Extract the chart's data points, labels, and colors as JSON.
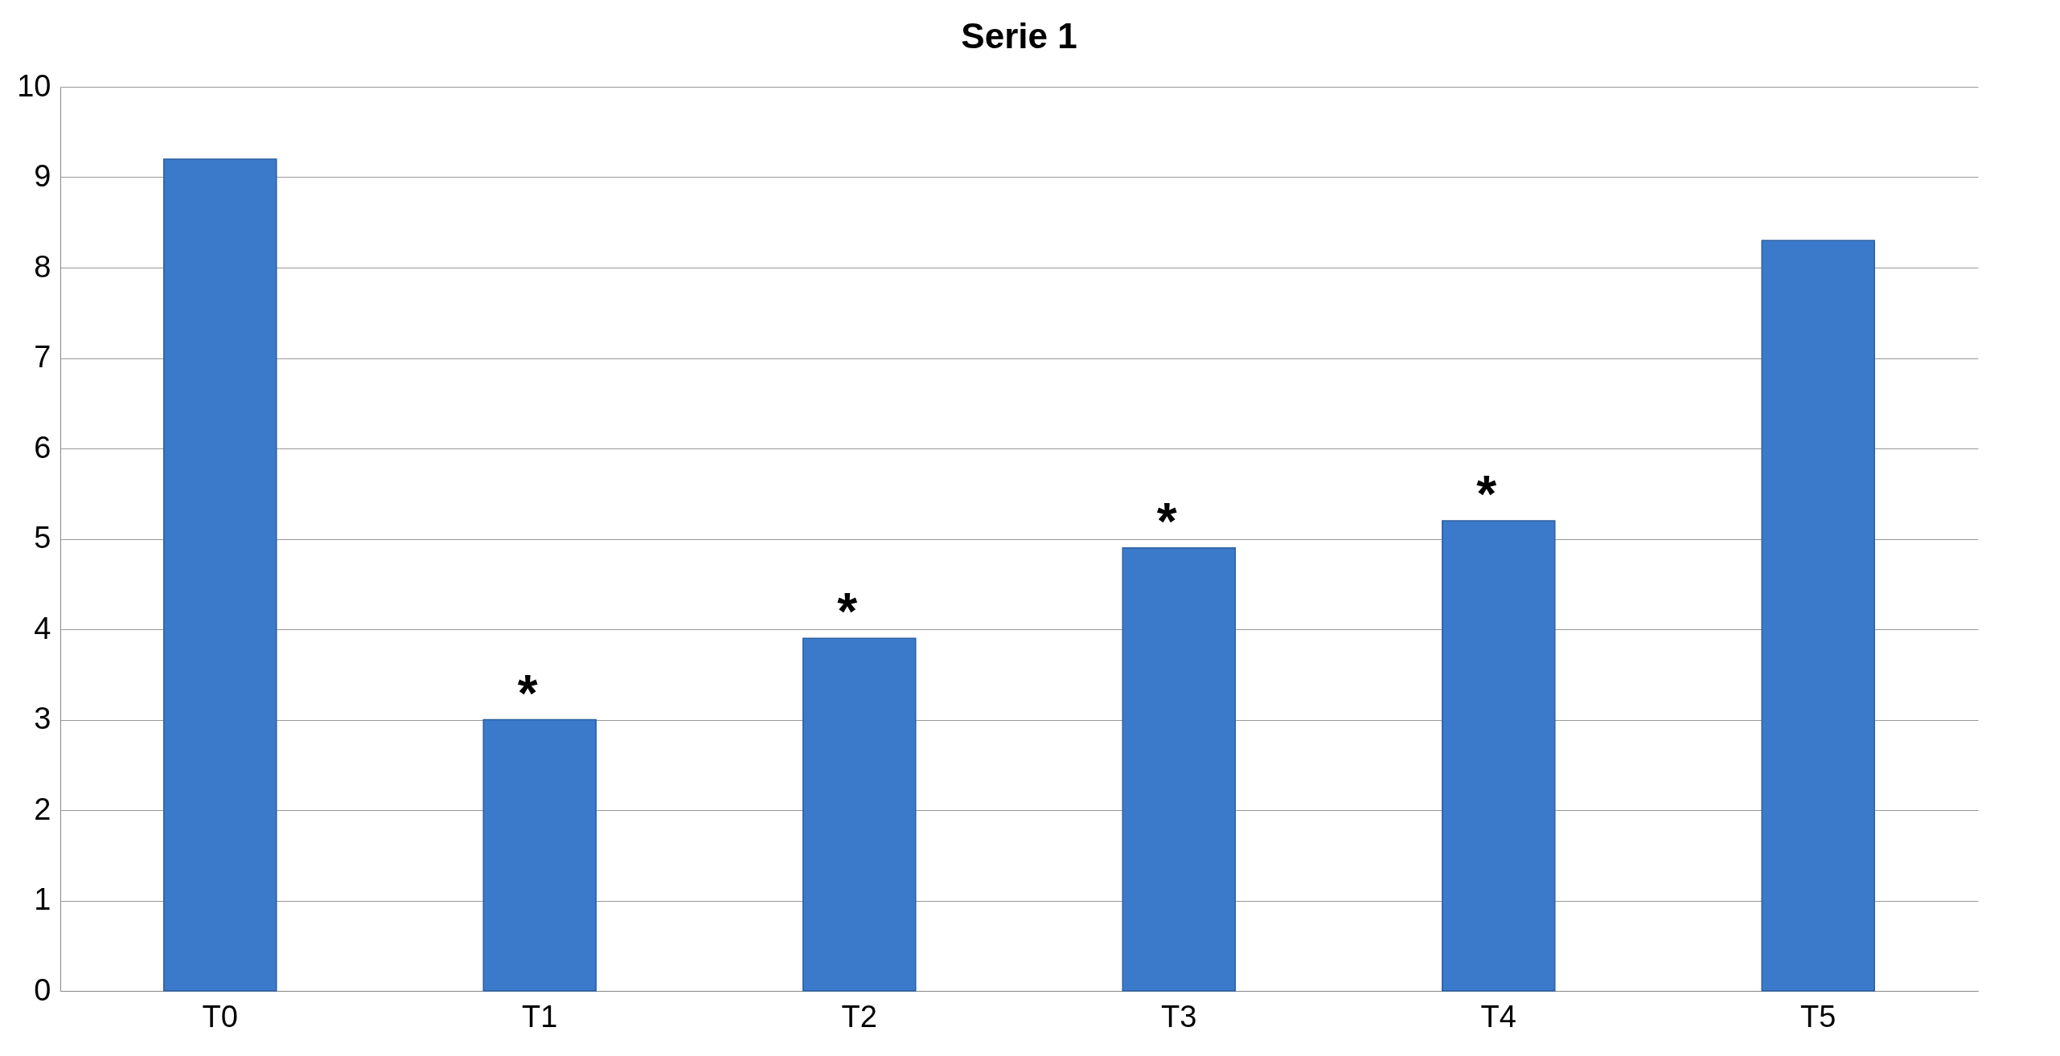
{
  "chart_data": {
    "type": "bar",
    "title": "Serie 1",
    "categories": [
      "T0",
      "T1",
      "T2",
      "T3",
      "T4",
      "T5"
    ],
    "values": [
      9.2,
      3.0,
      3.9,
      4.9,
      5.2,
      8.3
    ],
    "color": "#3b7acb",
    "ylim": [
      0,
      10
    ],
    "yticks": [
      0,
      1,
      2,
      3,
      4,
      5,
      6,
      7,
      8,
      9,
      10
    ],
    "grid": "y",
    "annotations": [
      {
        "text": "*",
        "x": "T1",
        "y": 3.0
      },
      {
        "text": "*",
        "x": "T2",
        "y": 3.9
      },
      {
        "text": "*",
        "x": "T3",
        "y": 4.9
      },
      {
        "text": "*",
        "x": "T4",
        "y": 5.2
      }
    ]
  }
}
